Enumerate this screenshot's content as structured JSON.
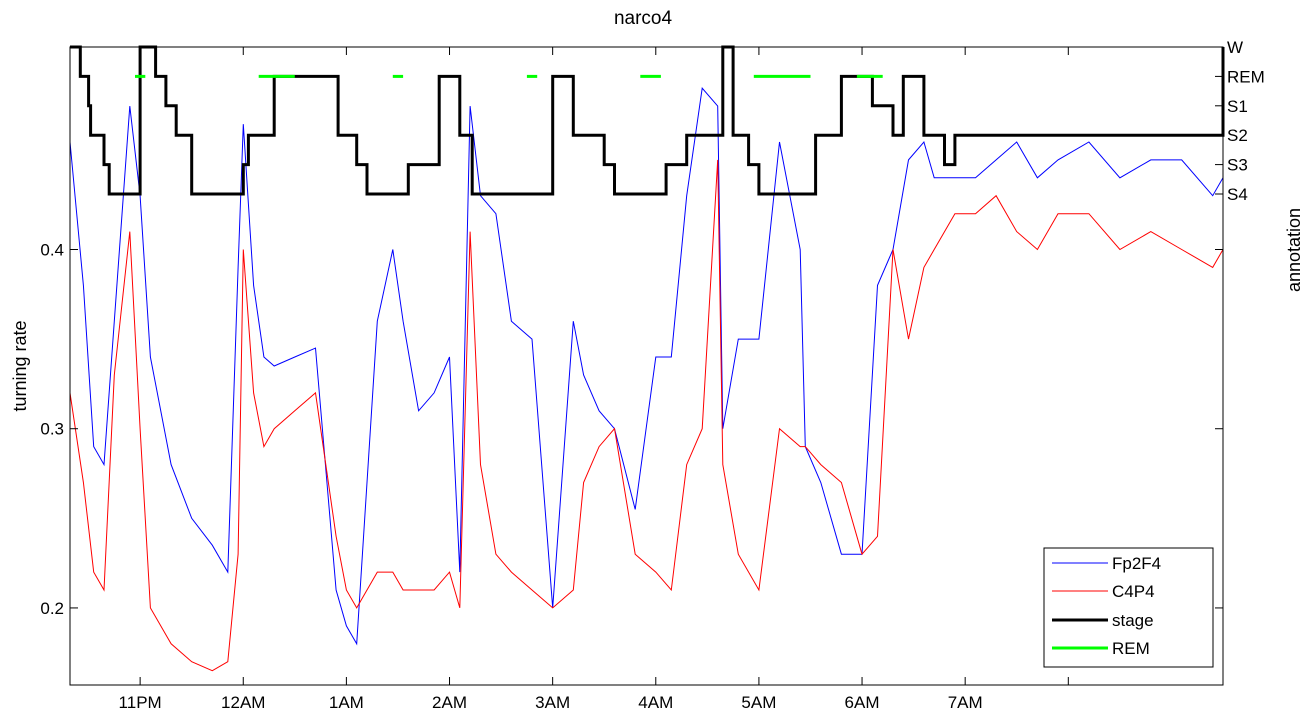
{
  "chart_data": {
    "type": "line",
    "title": "narco4",
    "ylabel": "turning rate",
    "ylabel_right": "annotation",
    "ylim": [
      0.157,
      0.513
    ],
    "y_ticks": [
      0.2,
      0.3,
      0.4
    ],
    "y_tick_labels": [
      "0.2",
      "0.3",
      "0.4"
    ],
    "x_unit": "hours from 10PM",
    "xlim": [
      0.32,
      11.5
    ],
    "x_ticks": [
      1,
      2,
      3,
      4,
      5,
      6,
      7,
      8,
      9,
      10
    ],
    "x_tick_labels": [
      "11PM",
      "12AM",
      "1AM",
      "2AM",
      "3AM",
      "4AM",
      "5AM",
      "6AM",
      "7AM",
      ""
    ],
    "stage_levels": [
      "W",
      "REM",
      "S1",
      "S2",
      "S3",
      "S4"
    ],
    "legend": {
      "position": "bottom-right",
      "entries": [
        "Fp2F4",
        "C4P4",
        "stage",
        "REM"
      ]
    },
    "colors": {
      "Fp2F4": "#0000ff",
      "C4P4": "#ff0000",
      "stage": "#000000",
      "REM": "#00ff00"
    },
    "series": [
      {
        "name": "Fp2F4",
        "x": [
          0.32,
          0.45,
          0.55,
          0.65,
          0.75,
          0.9,
          1.0,
          1.1,
          1.3,
          1.5,
          1.7,
          1.85,
          1.95,
          2.0,
          2.1,
          2.2,
          2.3,
          2.5,
          2.7,
          2.9,
          3.0,
          3.1,
          3.3,
          3.45,
          3.55,
          3.7,
          3.85,
          4.0,
          4.1,
          4.2,
          4.3,
          4.45,
          4.6,
          4.8,
          5.0,
          5.2,
          5.3,
          5.45,
          5.6,
          5.8,
          6.0,
          6.15,
          6.3,
          6.45,
          6.6,
          6.65,
          6.8,
          7.0,
          7.2,
          7.4,
          7.45,
          7.6,
          7.8,
          8.0,
          8.15,
          8.3,
          8.45,
          8.6,
          8.7,
          8.9,
          9.1,
          9.3,
          9.5,
          9.7,
          9.9,
          10.2,
          10.5,
          10.8,
          11.1,
          11.4,
          11.5
        ],
        "y": [
          0.46,
          0.38,
          0.29,
          0.28,
          0.36,
          0.48,
          0.43,
          0.34,
          0.28,
          0.25,
          0.235,
          0.22,
          0.39,
          0.47,
          0.38,
          0.34,
          0.335,
          0.34,
          0.345,
          0.21,
          0.19,
          0.18,
          0.36,
          0.4,
          0.36,
          0.31,
          0.32,
          0.34,
          0.22,
          0.48,
          0.43,
          0.42,
          0.36,
          0.35,
          0.2,
          0.36,
          0.33,
          0.31,
          0.3,
          0.255,
          0.34,
          0.34,
          0.43,
          0.49,
          0.48,
          0.3,
          0.35,
          0.35,
          0.46,
          0.4,
          0.29,
          0.27,
          0.23,
          0.23,
          0.38,
          0.4,
          0.45,
          0.46,
          0.44,
          0.44,
          0.44,
          0.45,
          0.46,
          0.44,
          0.45,
          0.46,
          0.44,
          0.45,
          0.45,
          0.43,
          0.44
        ]
      },
      {
        "name": "C4P4",
        "x": [
          0.32,
          0.45,
          0.55,
          0.65,
          0.75,
          0.9,
          1.0,
          1.1,
          1.3,
          1.5,
          1.7,
          1.85,
          1.95,
          2.0,
          2.1,
          2.2,
          2.3,
          2.5,
          2.7,
          2.9,
          3.0,
          3.1,
          3.3,
          3.45,
          3.55,
          3.7,
          3.85,
          4.0,
          4.1,
          4.2,
          4.3,
          4.45,
          4.6,
          4.8,
          5.0,
          5.2,
          5.3,
          5.45,
          5.6,
          5.8,
          6.0,
          6.15,
          6.3,
          6.45,
          6.6,
          6.65,
          6.8,
          7.0,
          7.2,
          7.4,
          7.45,
          7.6,
          7.8,
          8.0,
          8.15,
          8.3,
          8.45,
          8.6,
          8.7,
          8.9,
          9.1,
          9.3,
          9.5,
          9.7,
          9.9,
          10.2,
          10.5,
          10.8,
          11.1,
          11.4,
          11.5
        ],
        "y": [
          0.32,
          0.27,
          0.22,
          0.21,
          0.33,
          0.41,
          0.3,
          0.2,
          0.18,
          0.17,
          0.165,
          0.17,
          0.23,
          0.4,
          0.32,
          0.29,
          0.3,
          0.31,
          0.32,
          0.24,
          0.21,
          0.2,
          0.22,
          0.22,
          0.21,
          0.21,
          0.21,
          0.22,
          0.2,
          0.41,
          0.28,
          0.23,
          0.22,
          0.21,
          0.2,
          0.21,
          0.27,
          0.29,
          0.3,
          0.23,
          0.22,
          0.21,
          0.28,
          0.3,
          0.45,
          0.28,
          0.23,
          0.21,
          0.3,
          0.29,
          0.29,
          0.28,
          0.27,
          0.23,
          0.24,
          0.4,
          0.35,
          0.39,
          0.4,
          0.42,
          0.42,
          0.43,
          0.41,
          0.4,
          0.42,
          0.42,
          0.4,
          0.41,
          0.4,
          0.39,
          0.4
        ]
      },
      {
        "name": "stage",
        "x": [
          0.32,
          0.4,
          0.42,
          0.5,
          0.52,
          0.6,
          0.65,
          0.7,
          0.72,
          1.0,
          1.02,
          1.05,
          1.15,
          1.25,
          1.35,
          1.5,
          1.6,
          1.7,
          1.8,
          2.0,
          2.05,
          2.12,
          2.3,
          2.6,
          2.85,
          2.92,
          3.1,
          3.2,
          3.35,
          3.5,
          3.6,
          3.7,
          3.9,
          4.0,
          4.1,
          4.15,
          4.22,
          4.4,
          4.6,
          4.8,
          5.0,
          5.1,
          5.2,
          5.4,
          5.5,
          5.6,
          5.65,
          5.75,
          6.0,
          6.1,
          6.3,
          6.5,
          6.65,
          6.7,
          6.75,
          6.85,
          6.9,
          7.0,
          7.1,
          7.4,
          7.55,
          7.7,
          7.8,
          7.82,
          8.0,
          8.1,
          8.3,
          8.35,
          8.4,
          8.5,
          8.6,
          8.75,
          8.8,
          8.9,
          11.5
        ],
        "y": [
          0,
          0,
          1,
          2,
          3,
          3,
          4,
          5,
          5,
          0,
          0,
          0,
          1,
          2,
          3,
          5,
          5,
          5,
          5,
          4,
          3,
          3,
          1,
          1,
          1,
          3,
          4,
          5,
          5,
          5,
          4,
          4,
          1,
          1,
          3,
          3,
          5,
          5,
          5,
          5,
          1,
          1,
          3,
          3,
          4,
          5,
          5,
          5,
          5,
          4,
          3,
          3,
          0,
          0,
          3,
          3,
          4,
          5,
          5,
          5,
          3,
          3,
          1,
          1,
          1,
          2,
          3,
          3,
          1,
          1,
          3,
          3,
          4,
          3,
          0
        ]
      }
    ],
    "rem_segments": [
      [
        0.95,
        1.05
      ],
      [
        2.15,
        2.5
      ],
      [
        3.45,
        3.55
      ],
      [
        4.75,
        4.85
      ],
      [
        5.85,
        6.05
      ],
      [
        6.95,
        7.5
      ],
      [
        7.95,
        8.2
      ]
    ]
  }
}
